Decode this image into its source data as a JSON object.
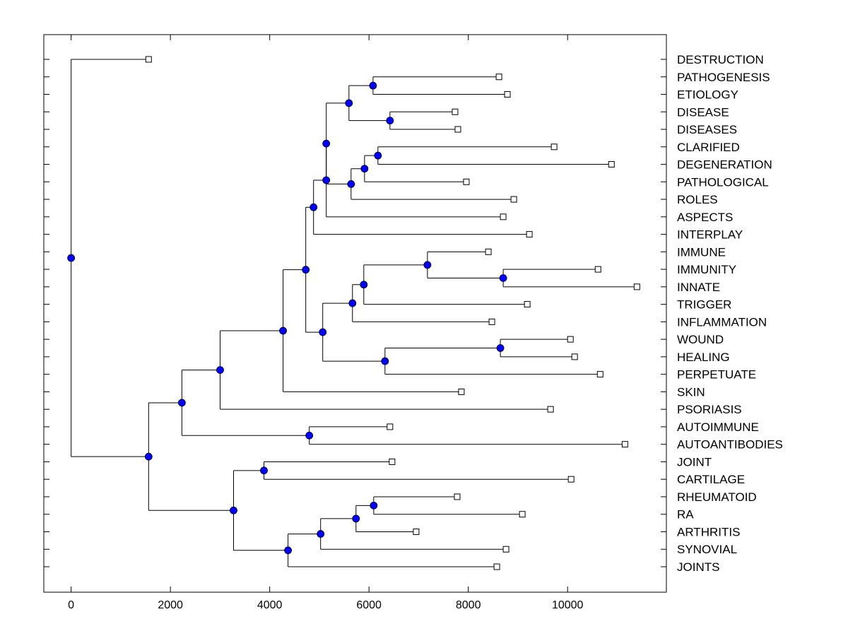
{
  "chart_data": {
    "type": "dendrogram",
    "title": "",
    "xlabel": "",
    "ylabel": "",
    "xlim": [
      -550,
      11990
    ],
    "xticks": [
      0,
      2000,
      4000,
      6000,
      8000,
      10000
    ],
    "xtick_labels": [
      "0",
      "2000",
      "4000",
      "6000",
      "8000",
      "10000"
    ],
    "grid": false,
    "legend": "none",
    "colors": {
      "internal_node": "#0000ff",
      "leaf_marker": "#ffffff",
      "line": "#000000"
    },
    "leaves": [
      "DESTRUCTION",
      "PATHOGENESIS",
      "ETIOLOGY",
      "DISEASE",
      "DISEASES",
      "CLARIFIED",
      "DEGENERATION",
      "PATHOLOGICAL",
      "ROLES",
      "ASPECTS",
      "INTERPLAY",
      "IMMUNE",
      "IMMUNITY",
      "INNATE",
      "TRIGGER",
      "INFLAMMATION",
      "WOUND",
      "HEALING",
      "PERPETUATE",
      "SKIN",
      "PSORIASIS",
      "AUTOIMMUNE",
      "AUTOANTIBODIES",
      "JOINT",
      "CARTILAGE",
      "RHEUMATOID",
      "RA",
      "ARTHRITIS",
      "SYNOVIAL",
      "JOINTS"
    ],
    "tree": {
      "x": 0,
      "children": [
        {
          "leaf": "DESTRUCTION",
          "x": 1561
        },
        {
          "x": 1561,
          "children": [
            {
              "x": 2231,
              "children": [
                {
                  "x": 3001,
                  "children": [
                    {
                      "x": 4269,
                      "children": [
                        {
                          "x": 4726,
                          "children": [
                            {
                              "x": 4883,
                              "children": [
                                {
                                  "x": 5139,
                                  "children": [
                                    {
                                      "x": 5139,
                                      "children": [
                                        {
                                          "x": 5596,
                                          "children": [
                                            {
                                              "x": 6081,
                                              "children": [
                                                {
                                                  "leaf": "PATHOGENESIS",
                                                  "x": 8618
                                                },
                                                {
                                                  "leaf": "ETIOLOGY",
                                                  "x": 8788
                                                }
                                              ]
                                            },
                                            {
                                              "x": 6422,
                                              "children": [
                                                {
                                                  "leaf": "DISEASE",
                                                  "x": 7733
                                                },
                                                {
                                                  "leaf": "DISEASES",
                                                  "x": 7790
                                                }
                                              ]
                                            }
                                          ]
                                        },
                                        {
                                          "x": 5639,
                                          "children": [
                                            {
                                              "x": 5910,
                                              "children": [
                                                {
                                                  "x": 6180,
                                                  "children": [
                                                    {
                                                      "leaf": "CLARIFIED",
                                                      "x": 9729
                                                    },
                                                    {
                                                      "leaf": "DEGENERATION",
                                                      "x": 10884
                                                    }
                                                  ]
                                                },
                                                {
                                                  "leaf": "PATHOLOGICAL",
                                                  "x": 7961
                                                }
                                              ]
                                            },
                                            {
                                              "leaf": "ROLES",
                                              "x": 8917
                                            }
                                          ]
                                        }
                                      ]
                                    },
                                    {
                                      "leaf": "ASPECTS",
                                      "x": 8703
                                    }
                                  ]
                                },
                                {
                                  "leaf": "INTERPLAY",
                                  "x": 9230
                                }
                              ]
                            },
                            {
                              "x": 5068,
                              "children": [
                                {
                                  "x": 5667,
                                  "children": [
                                    {
                                      "x": 5895,
                                      "children": [
                                        {
                                          "x": 7177,
                                          "children": [
                                            {
                                              "leaf": "IMMUNE",
                                              "x": 8404
                                            },
                                            {
                                              "x": 8703,
                                              "children": [
                                                {
                                                  "leaf": "IMMUNITY",
                                                  "x": 10613
                                                },
                                                {
                                                  "leaf": "INNATE",
                                                  "x": 11397
                                                }
                                              ]
                                            }
                                          ]
                                        },
                                        {
                                          "leaf": "TRIGGER",
                                          "x": 9188
                                        }
                                      ]
                                    },
                                    {
                                      "leaf": "INFLAMMATION",
                                      "x": 8475
                                    }
                                  ]
                                },
                                {
                                  "x": 6322,
                                  "children": [
                                    {
                                      "x": 8646,
                                      "children": [
                                        {
                                          "leaf": "WOUND",
                                          "x": 10057
                                        },
                                        {
                                          "leaf": "HEALING",
                                          "x": 10142
                                        }
                                      ]
                                    },
                                    {
                                      "leaf": "PERPETUATE",
                                      "x": 10656
                                    }
                                  ]
                                }
                              ]
                            }
                          ]
                        },
                        {
                          "leaf": "SKIN",
                          "x": 7861
                        }
                      ]
                    },
                    {
                      "leaf": "PSORIASIS",
                      "x": 9657
                    }
                  ]
                },
                {
                  "x": 4797,
                  "children": [
                    {
                      "leaf": "AUTOIMMUNE",
                      "x": 6422
                    },
                    {
                      "leaf": "AUTOANTIBODIES",
                      "x": 11155
                    }
                  ]
                }
              ]
            },
            {
              "x": 3272,
              "children": [
                {
                  "x": 3884,
                  "children": [
                    {
                      "leaf": "JOINT",
                      "x": 6465
                    },
                    {
                      "leaf": "CARTILAGE",
                      "x": 10071
                    }
                  ]
                },
                {
                  "x": 4369,
                  "children": [
                    {
                      "x": 5025,
                      "children": [
                        {
                          "x": 5738,
                          "children": [
                            {
                              "x": 6095,
                              "children": [
                                {
                                  "leaf": "RHEUMATOID",
                                  "x": 7776
                                },
                                {
                                  "leaf": "RA",
                                  "x": 9088
                                }
                              ]
                            },
                            {
                              "leaf": "ARTHRITIS",
                              "x": 6950
                            }
                          ]
                        },
                        {
                          "leaf": "SYNOVIAL",
                          "x": 8760
                        }
                      ]
                    },
                    {
                      "leaf": "JOINTS",
                      "x": 8575
                    }
                  ]
                }
              ]
            }
          ]
        }
      ]
    }
  }
}
